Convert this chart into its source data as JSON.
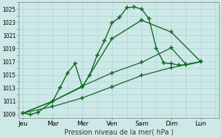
{
  "title": "",
  "xlabel": "Pression niveau de la mer( hPa )",
  "background_color": "#cce9e8",
  "grid_color": "#aad4d3",
  "line_color": "#1a6b2a",
  "ylim": [
    1008.5,
    1026.0
  ],
  "yticks": [
    1009,
    1011,
    1013,
    1015,
    1017,
    1019,
    1021,
    1023,
    1025
  ],
  "x_labels": [
    "Jeu",
    "Mar",
    "Mer",
    "Ven",
    "Sam",
    "Dim",
    "Lun"
  ],
  "x_positions": [
    0,
    2,
    4,
    6,
    8,
    10,
    12
  ],
  "xlim": [
    -0.3,
    13.2
  ],
  "lines": [
    {
      "x": [
        0,
        0.5,
        1.0,
        2.0,
        2.5,
        3.0,
        3.5,
        4.0,
        4.5,
        5.0,
        5.5,
        6.0,
        6.5,
        7.0,
        7.5,
        8.0,
        8.5,
        9.0,
        9.5,
        10.0,
        10.5,
        11.0,
        12.0
      ],
      "y": [
        1009.2,
        1009.0,
        1009.3,
        1011.0,
        1013.1,
        1015.3,
        1016.7,
        1013.2,
        1015.0,
        1018.0,
        1020.2,
        1022.9,
        1023.7,
        1025.2,
        1025.3,
        1025.0,
        1023.5,
        1019.0,
        1016.8,
        1016.7,
        1016.5,
        1016.5,
        1017.0
      ],
      "marker": "+",
      "linewidth": 1.1,
      "markersize": 4
    },
    {
      "x": [
        0,
        2,
        4,
        6,
        8,
        10,
        12
      ],
      "y": [
        1009.2,
        1011.0,
        1013.2,
        1020.5,
        1023.3,
        1021.5,
        1017.0
      ],
      "marker": "+",
      "linewidth": 1.1,
      "markersize": 4
    },
    {
      "x": [
        0,
        2,
        4,
        6,
        8,
        10,
        11,
        12
      ],
      "y": [
        1009.2,
        1011.0,
        1013.3,
        1015.3,
        1016.9,
        1019.1,
        1016.6,
        1017.0
      ],
      "marker": "+",
      "linewidth": 1.0,
      "markersize": 4
    },
    {
      "x": [
        0,
        2,
        4,
        6,
        8,
        10,
        12
      ],
      "y": [
        1009.2,
        1010.2,
        1011.5,
        1013.2,
        1014.9,
        1016.1,
        1017.0
      ],
      "marker": "+",
      "linewidth": 1.0,
      "markersize": 4
    }
  ]
}
